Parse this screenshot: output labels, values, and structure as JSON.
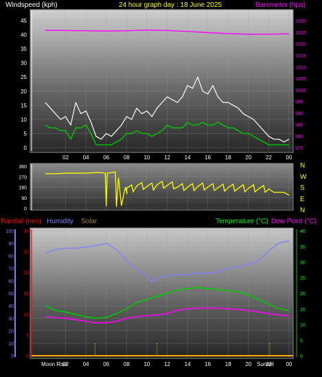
{
  "header": {
    "left": "Windspeed (kph)",
    "center": "24 hour graph day : 18 June 2025",
    "right": "Barometer (hpa)"
  },
  "panel3_header": {
    "rain": "Rainfall (mm)",
    "humidity": "Humidity",
    "solar": "Solar",
    "temperature": "Temperature (°C)",
    "dewpoint": "Dew Point (°C)"
  },
  "markers": {
    "moonrise": "Moon Rise",
    "sunset": "Sunset"
  },
  "colors": {
    "wind_gust": "#ffffff",
    "wind_avg": "#00cc00",
    "barometer": "#ff00ff",
    "wind_dir": "#ffff00",
    "humidity": "#8080ff",
    "temperature": "#00cc00",
    "dewpoint": "#ff00ff",
    "rain": "#ff0000",
    "solar": "#ffff00"
  },
  "chart_data": [
    {
      "type": "line",
      "x_ticks": [
        "02",
        "04",
        "06",
        "08",
        "10",
        "12",
        "14",
        "16",
        "18",
        "20",
        "22",
        "00"
      ],
      "y_ticks": [
        "0",
        "5",
        "10",
        "15",
        "20",
        "25",
        "30",
        "35",
        "40",
        "45"
      ],
      "y2_ticks": [
        "975",
        "980",
        "985",
        "990",
        "995",
        "1000",
        "1005",
        "1010",
        "1015",
        "1020",
        "1025",
        "1030"
      ],
      "ylim": [
        0,
        47
      ],
      "y2lim": [
        973,
        1032
      ],
      "xlim": [
        0,
        24
      ],
      "series": [
        {
          "name": "Windspeed (kph)",
          "axis": "left",
          "x": [
            0,
            0.5,
            1,
            1.5,
            2,
            2.5,
            3,
            3.5,
            4,
            4.5,
            5,
            5.5,
            6,
            6.5,
            7,
            7.5,
            8,
            8.5,
            9,
            9.5,
            10,
            10.5,
            11,
            11.5,
            12,
            12.5,
            13,
            13.5,
            14,
            14.5,
            15,
            15.5,
            16,
            16.5,
            17,
            17.5,
            18,
            18.5,
            19,
            19.5,
            20,
            20.5,
            21,
            21.5,
            22,
            22.5,
            23,
            23.5,
            24
          ],
          "values": [
            8,
            7,
            7,
            6,
            6,
            3,
            7,
            7,
            8,
            5,
            1,
            1,
            1,
            1,
            2,
            3,
            5,
            5,
            6,
            5,
            5,
            4,
            5,
            6,
            8,
            7,
            7,
            7,
            9,
            8,
            8,
            9,
            8,
            8,
            9,
            8,
            7,
            7,
            6,
            5,
            5,
            4,
            3,
            2,
            1,
            1,
            1,
            1,
            1
          ]
        },
        {
          "name": "Wind gust",
          "axis": "left",
          "x": [
            0,
            0.5,
            1,
            1.5,
            2,
            2.5,
            3,
            3.5,
            4,
            4.5,
            5,
            5.5,
            6,
            6.5,
            7,
            7.5,
            8,
            8.5,
            9,
            9.5,
            10,
            10.5,
            11,
            11.5,
            12,
            12.5,
            13,
            13.5,
            14,
            14.5,
            15,
            15.5,
            16,
            16.5,
            17,
            17.5,
            18,
            18.5,
            19,
            19.5,
            20,
            20.5,
            21,
            21.5,
            22,
            22.5,
            23,
            23.5,
            24
          ],
          "values": [
            16,
            14,
            12,
            10,
            11,
            8,
            16,
            12,
            13,
            9,
            4,
            3,
            5,
            4,
            6,
            8,
            11,
            10,
            14,
            12,
            13,
            11,
            14,
            16,
            18,
            17,
            16,
            18,
            22,
            21,
            25,
            20,
            19,
            22,
            18,
            16,
            16,
            15,
            14,
            12,
            11,
            10,
            8,
            6,
            4,
            3,
            3,
            2,
            3
          ]
        },
        {
          "name": "Barometer (hpa)",
          "axis": "right",
          "x": [
            0,
            2,
            4,
            6,
            8,
            10,
            12,
            14,
            16,
            18,
            20,
            22,
            24
          ],
          "values": [
            1025.8,
            1025.7,
            1025.6,
            1025.5,
            1025.6,
            1025.9,
            1025.7,
            1025.3,
            1024.8,
            1024.4,
            1024.1,
            1024.1,
            1024.3
          ]
        }
      ]
    },
    {
      "type": "line",
      "y_ticks": [
        "0",
        "90",
        "180",
        "270",
        "360"
      ],
      "y2_ticks": [
        "N",
        "W",
        "S",
        "E",
        "N"
      ],
      "ylim": [
        0,
        360
      ],
      "xlim": [
        0,
        24
      ],
      "series": [
        {
          "name": "Wind direction",
          "x": [
            0,
            1,
            2,
            3,
            4,
            5,
            5.5,
            5.9,
            6.0,
            6.1,
            6.5,
            6.9,
            7.0,
            7.2,
            7.5,
            7.8,
            8,
            9,
            10,
            11,
            12,
            13,
            14,
            15,
            16,
            17,
            18,
            19,
            20,
            21,
            22,
            22.5,
            23,
            23.5,
            24
          ],
          "values": [
            295,
            295,
            300,
            300,
            300,
            305,
            305,
            300,
            15,
            300,
            305,
            310,
            10,
            260,
            20,
            150,
            170,
            190,
            185,
            200,
            195,
            180,
            180,
            185,
            180,
            175,
            175,
            170,
            170,
            165,
            165,
            135,
            135,
            135,
            110
          ]
        }
      ]
    },
    {
      "type": "line",
      "x_ticks": [
        "02",
        "04",
        "06",
        "08",
        "10",
        "12",
        "14",
        "16",
        "18",
        "20",
        "22",
        "00"
      ],
      "y_ticks": [
        "0",
        "10",
        "20",
        "30",
        "40",
        "50",
        "60",
        "70",
        "80",
        "90",
        "100"
      ],
      "y_rain_ticks": [
        "0",
        "5",
        "10",
        "15",
        "20",
        "25",
        "30"
      ],
      "y2_ticks": [
        "0",
        "5",
        "10",
        "15",
        "20",
        "25",
        "30",
        "35",
        "40"
      ],
      "ylim": [
        0,
        100
      ],
      "y2lim": [
        0,
        40
      ],
      "xlim": [
        0,
        24
      ],
      "series": [
        {
          "name": "Humidity",
          "axis": "humidity",
          "x": [
            0,
            1,
            2,
            3,
            4,
            5,
            6,
            7,
            8,
            9,
            10,
            10.5,
            11,
            12,
            13,
            14,
            15,
            16,
            17,
            18,
            19,
            20,
            21,
            22,
            23,
            24
          ],
          "values": [
            82,
            85,
            86,
            86,
            87,
            88,
            90,
            85,
            76,
            69,
            64,
            59,
            62,
            64,
            65,
            65,
            66,
            66,
            67,
            70,
            71,
            73,
            76,
            84,
            90,
            92
          ]
        },
        {
          "name": "Temperature (°C)",
          "axis": "temp",
          "x": [
            0,
            1,
            2,
            3,
            4,
            5,
            6,
            7,
            8,
            9,
            10,
            11,
            12,
            13,
            14,
            15,
            16,
            17,
            18,
            19,
            20,
            21,
            22,
            23,
            24
          ],
          "values": [
            16.0,
            14.5,
            14.0,
            13.2,
            12.5,
            12.0,
            12.2,
            13.5,
            15.0,
            17.0,
            18.0,
            19.0,
            20.0,
            21.0,
            21.5,
            21.8,
            21.5,
            21.2,
            20.8,
            20.5,
            19.5,
            18.0,
            16.5,
            15.0,
            14.5
          ]
        },
        {
          "name": "Dew Point (°C)",
          "axis": "temp",
          "x": [
            0,
            1,
            2,
            3,
            4,
            5,
            6,
            7,
            8,
            9,
            10,
            11,
            12,
            13,
            14,
            15,
            16,
            17,
            18,
            19,
            20,
            21,
            22,
            23,
            24
          ],
          "values": [
            12.5,
            12.2,
            12.0,
            11.5,
            11.0,
            10.5,
            10.5,
            11.0,
            12.0,
            12.5,
            12.8,
            13.0,
            13.5,
            14.5,
            15.0,
            15.2,
            15.3,
            15.2,
            15.0,
            14.8,
            14.5,
            14.0,
            13.5,
            13.0,
            12.8
          ]
        },
        {
          "name": "Rainfall (mm)",
          "axis": "rain",
          "x": [
            0,
            24
          ],
          "values": [
            0,
            0
          ]
        }
      ]
    }
  ]
}
